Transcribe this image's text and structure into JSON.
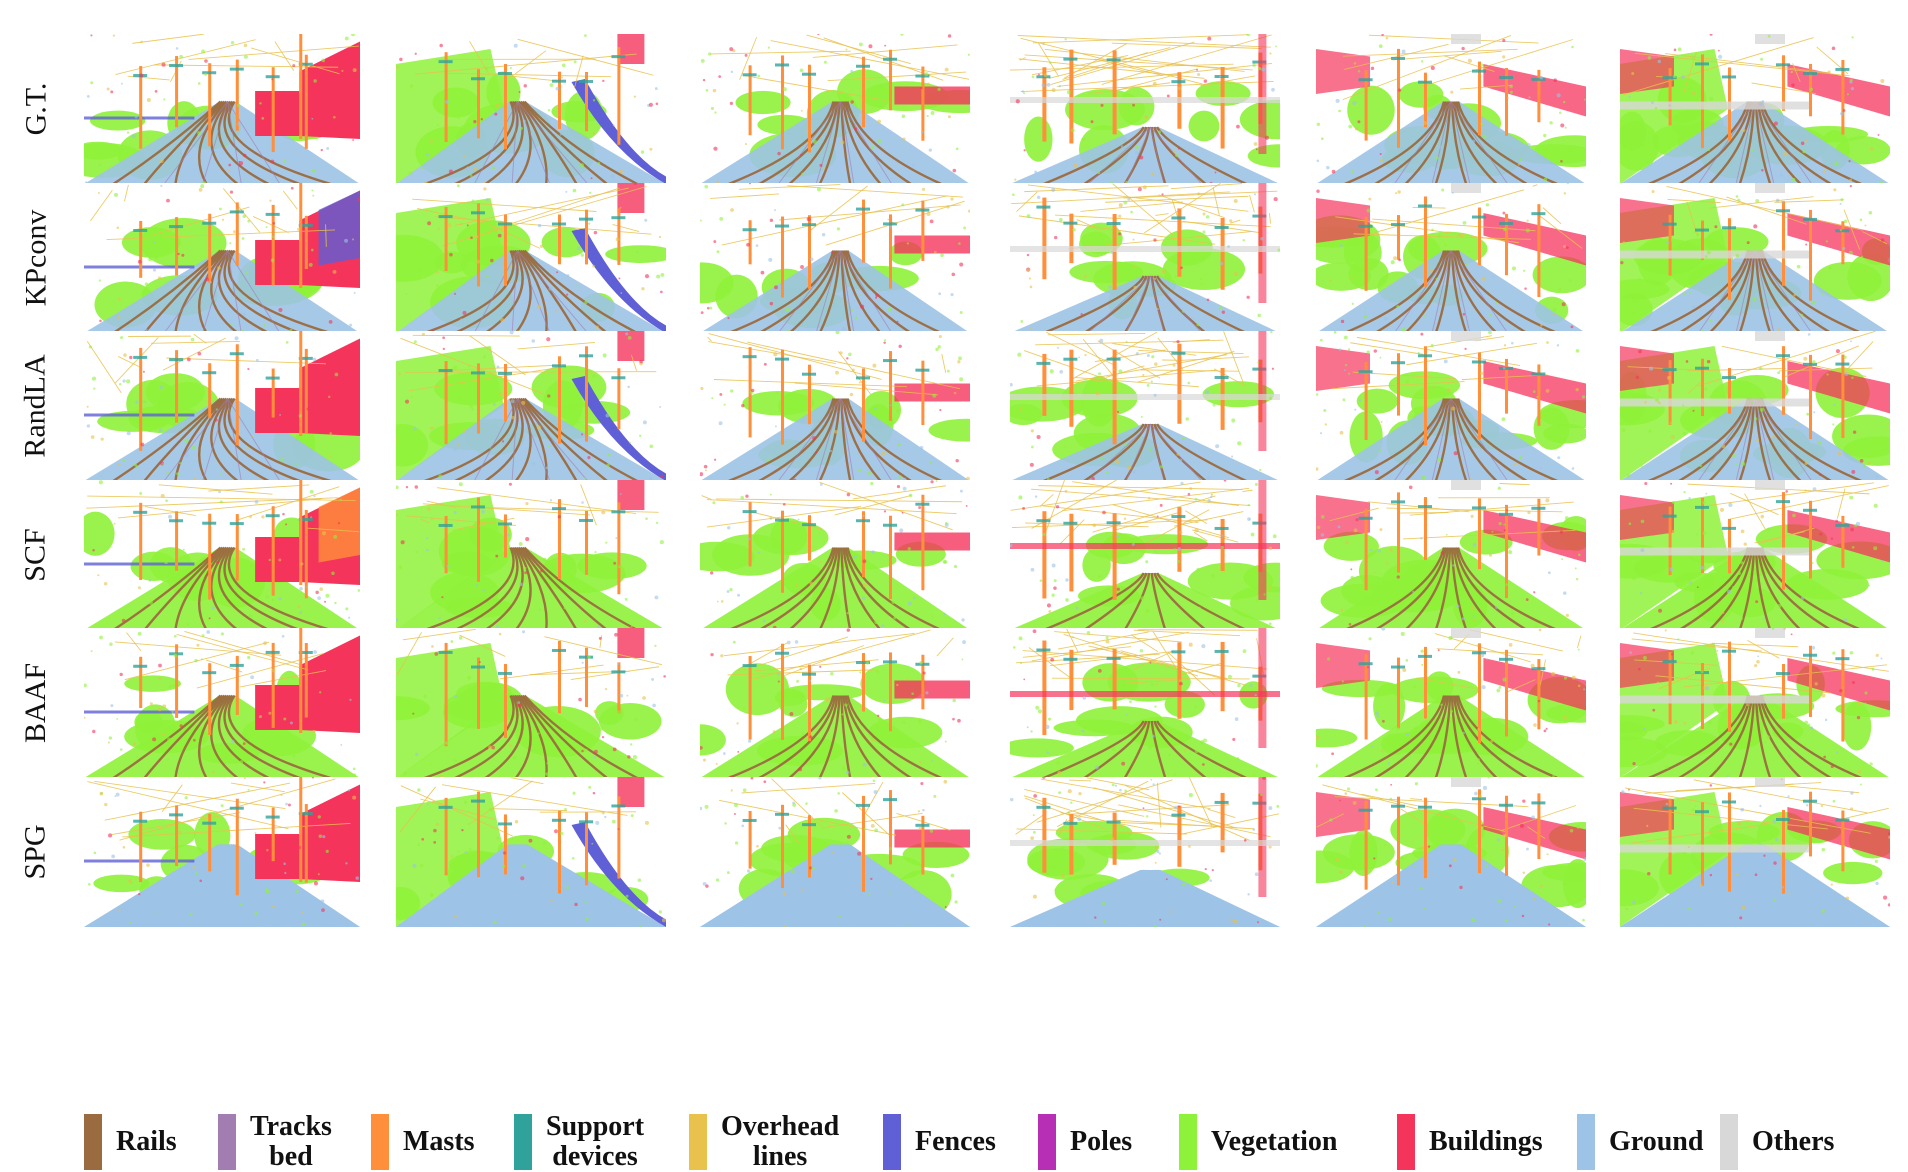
{
  "rows": [
    {
      "label": "G.T."
    },
    {
      "label": "KPconv"
    },
    {
      "label": "RandLA"
    },
    {
      "label": "SCF"
    },
    {
      "label": "BAAF"
    },
    {
      "label": "SPG"
    }
  ],
  "legend": [
    {
      "lines": [
        "Rails"
      ],
      "color": "#9a6b3f"
    },
    {
      "lines": [
        "Tracks",
        "bed"
      ],
      "color": "#a27db2"
    },
    {
      "lines": [
        "Masts"
      ],
      "color": "#ff8f3a"
    },
    {
      "lines": [
        "Support",
        "devices"
      ],
      "color": "#2fa39b"
    },
    {
      "lines": [
        "Overhead",
        "lines"
      ],
      "color": "#e8c24d"
    },
    {
      "lines": [
        "Fences"
      ],
      "color": "#5f5fd6"
    },
    {
      "lines": [
        "Poles"
      ],
      "color": "#b72fb4"
    },
    {
      "lines": [
        "Vegetation"
      ],
      "color": "#8ff23a"
    },
    {
      "lines": [
        "Buildings"
      ],
      "color": "#f5345c"
    },
    {
      "lines": [
        "Ground"
      ],
      "color": "#9dc3e6"
    },
    {
      "lines": [
        "Others"
      ],
      "color": "#d8d8d8"
    }
  ]
}
